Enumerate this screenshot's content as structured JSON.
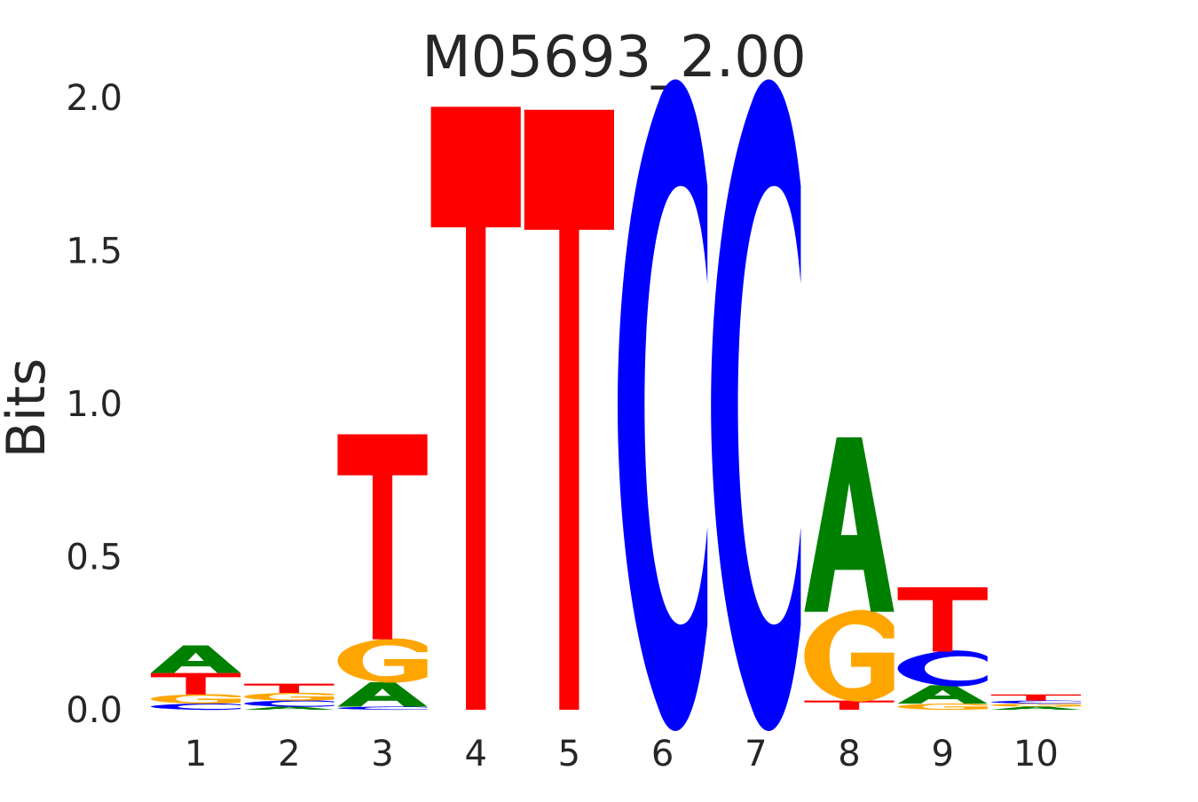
{
  "chart_data": {
    "type": "sequence-logo",
    "title": "M05693_2.00",
    "ylabel": "Bits",
    "xlabel": "",
    "ylim": [
      0,
      2.0
    ],
    "yticks": [
      "0.0",
      "0.5",
      "1.0",
      "1.5",
      "2.0"
    ],
    "positions": [
      "1",
      "2",
      "3",
      "4",
      "5",
      "6",
      "7",
      "8",
      "9",
      "10"
    ],
    "grid": false,
    "colors": {
      "A": "#008000",
      "C": "#0000ff",
      "G": "#ffa500",
      "T": "#ff0000"
    },
    "stacks": [
      [
        {
          "letter": "C",
          "bits": 0.02
        },
        {
          "letter": "G",
          "bits": 0.03
        },
        {
          "letter": "T",
          "bits": 0.07
        },
        {
          "letter": "A",
          "bits": 0.09
        }
      ],
      [
        {
          "letter": "A",
          "bits": 0.01
        },
        {
          "letter": "C",
          "bits": 0.02
        },
        {
          "letter": "G",
          "bits": 0.025
        },
        {
          "letter": "T",
          "bits": 0.03
        }
      ],
      [
        {
          "letter": "C",
          "bits": 0.01
        },
        {
          "letter": "A",
          "bits": 0.08
        },
        {
          "letter": "G",
          "bits": 0.14
        },
        {
          "letter": "T",
          "bits": 0.67
        }
      ],
      [
        {
          "letter": "T",
          "bits": 1.97
        }
      ],
      [
        {
          "letter": "T",
          "bits": 1.96
        }
      ],
      [
        {
          "letter": "C",
          "bits": 1.99
        }
      ],
      [
        {
          "letter": "C",
          "bits": 1.99
        }
      ],
      [
        {
          "letter": "T",
          "bits": 0.03
        },
        {
          "letter": "G",
          "bits": 0.29
        },
        {
          "letter": "A",
          "bits": 0.57
        }
      ],
      [
        {
          "letter": "G",
          "bits": 0.02
        },
        {
          "letter": "A",
          "bits": 0.06
        },
        {
          "letter": "C",
          "bits": 0.11
        },
        {
          "letter": "T",
          "bits": 0.21
        }
      ],
      [
        {
          "letter": "A",
          "bits": 0.01
        },
        {
          "letter": "G",
          "bits": 0.01
        },
        {
          "letter": "C",
          "bits": 0.01
        },
        {
          "letter": "T",
          "bits": 0.02
        }
      ]
    ]
  }
}
